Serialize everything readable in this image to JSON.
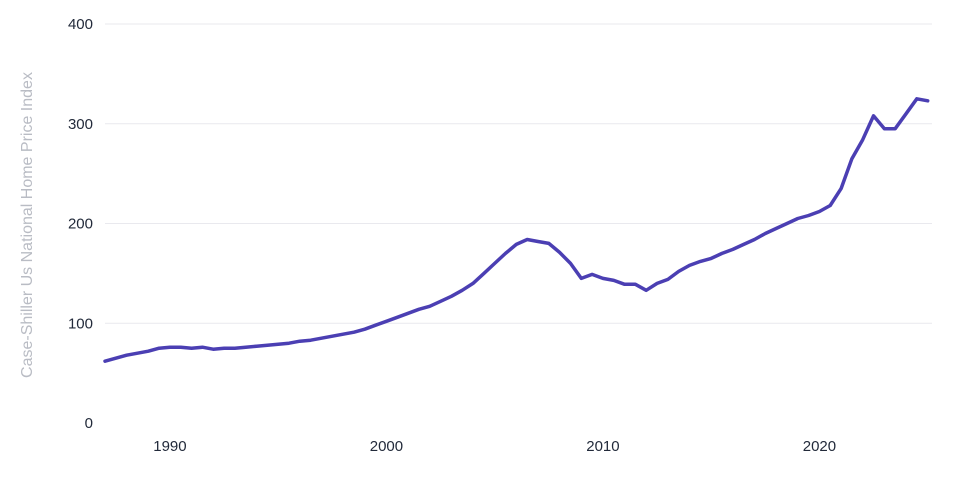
{
  "chart_data": {
    "type": "line",
    "title": "",
    "xlabel": "",
    "ylabel": "Case-Shiller Us National Home Price Index",
    "xlim": [
      1987.0,
      2025.2
    ],
    "ylim": [
      0,
      400
    ],
    "x_ticks": [
      1990,
      2000,
      2010,
      2020
    ],
    "y_ticks": [
      0,
      100,
      200,
      300,
      400
    ],
    "grid": "horizontal",
    "legend": "none",
    "colors": {
      "line": "#4b3fb3",
      "grid": "#e9e9ee",
      "tick_text": "#222a3a",
      "axis_title": "#b9bcc4"
    },
    "series": [
      {
        "x": [
          1987.0,
          1987.5,
          1988.0,
          1988.5,
          1989.0,
          1989.5,
          1990.0,
          1990.5,
          1991.0,
          1991.5,
          1992.0,
          1992.5,
          1993.0,
          1993.5,
          1994.0,
          1994.5,
          1995.0,
          1995.5,
          1996.0,
          1996.5,
          1997.0,
          1997.5,
          1998.0,
          1998.5,
          1999.0,
          1999.5,
          2000.0,
          2000.5,
          2001.0,
          2001.5,
          2002.0,
          2002.5,
          2003.0,
          2003.5,
          2004.0,
          2004.5,
          2005.0,
          2005.5,
          2006.0,
          2006.5,
          2007.0,
          2007.5,
          2008.0,
          2008.5,
          2009.0,
          2009.5,
          2010.0,
          2010.5,
          2011.0,
          2011.5,
          2012.0,
          2012.5,
          2013.0,
          2013.5,
          2014.0,
          2014.5,
          2015.0,
          2015.5,
          2016.0,
          2016.5,
          2017.0,
          2017.5,
          2018.0,
          2018.5,
          2019.0,
          2019.5,
          2020.0,
          2020.5,
          2021.0,
          2021.5,
          2022.0,
          2022.5,
          2023.0,
          2023.5,
          2024.0,
          2024.5,
          2025.0
        ],
        "values": [
          62,
          65,
          68,
          70,
          72,
          75,
          76,
          76,
          75,
          76,
          74,
          75,
          75,
          76,
          77,
          78,
          79,
          80,
          82,
          83,
          85,
          87,
          89,
          91,
          94,
          98,
          102,
          106,
          110,
          114,
          117,
          122,
          127,
          133,
          140,
          150,
          160,
          170,
          179,
          184,
          182,
          180,
          171,
          160,
          145,
          149,
          145,
          143,
          139,
          139,
          133,
          140,
          144,
          152,
          158,
          162,
          165,
          170,
          174,
          179,
          184,
          190,
          195,
          200,
          205,
          208,
          212,
          218,
          235,
          265,
          284,
          308,
          295,
          295,
          310,
          325,
          323
        ]
      }
    ]
  }
}
